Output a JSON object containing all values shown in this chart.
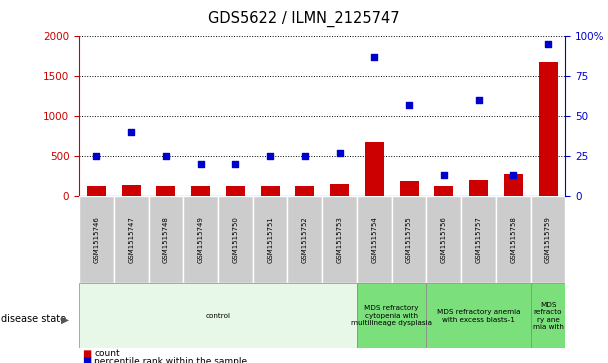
{
  "title": "GDS5622 / ILMN_2125747",
  "samples": [
    "GSM1515746",
    "GSM1515747",
    "GSM1515748",
    "GSM1515749",
    "GSM1515750",
    "GSM1515751",
    "GSM1515752",
    "GSM1515753",
    "GSM1515754",
    "GSM1515755",
    "GSM1515756",
    "GSM1515757",
    "GSM1515758",
    "GSM1515759"
  ],
  "counts": [
    130,
    140,
    120,
    125,
    120,
    120,
    130,
    150,
    680,
    190,
    130,
    200,
    270,
    1680
  ],
  "percentile_ranks": [
    25,
    40,
    25,
    20,
    20,
    25,
    25,
    27,
    87,
    57,
    13,
    60,
    13,
    95
  ],
  "bar_color": "#cc0000",
  "dot_color": "#0000cc",
  "left_ylim": [
    0,
    2000
  ],
  "right_ylim": [
    0,
    100
  ],
  "left_yticks": [
    0,
    500,
    1000,
    1500,
    2000
  ],
  "right_yticks": [
    0,
    25,
    50,
    75,
    100
  ],
  "right_yticklabels": [
    "0",
    "25",
    "50",
    "75",
    "100%"
  ],
  "left_ylabel_color": "#cc0000",
  "right_ylabel_color": "#0000cc",
  "disease_groups": [
    {
      "label": "control",
      "start": 0,
      "end": 8,
      "color": "#e8f8e8"
    },
    {
      "label": "MDS refractory\ncytopenia with\nmultilineage dysplasia",
      "start": 8,
      "end": 10,
      "color": "#7be07b"
    },
    {
      "label": "MDS refractory anemia\nwith excess blasts-1",
      "start": 10,
      "end": 13,
      "color": "#7be07b"
    },
    {
      "label": "MDS\nrefracto\nry ane\nmia with",
      "start": 13,
      "end": 14,
      "color": "#7be07b"
    }
  ],
  "disease_state_label": "disease state",
  "legend_items": [
    {
      "label": "count",
      "color": "#cc0000"
    },
    {
      "label": "percentile rank within the sample",
      "color": "#0000cc"
    }
  ],
  "bg_color": "#ffffff",
  "grid_color": "#000000",
  "tick_box_color": "#cccccc"
}
